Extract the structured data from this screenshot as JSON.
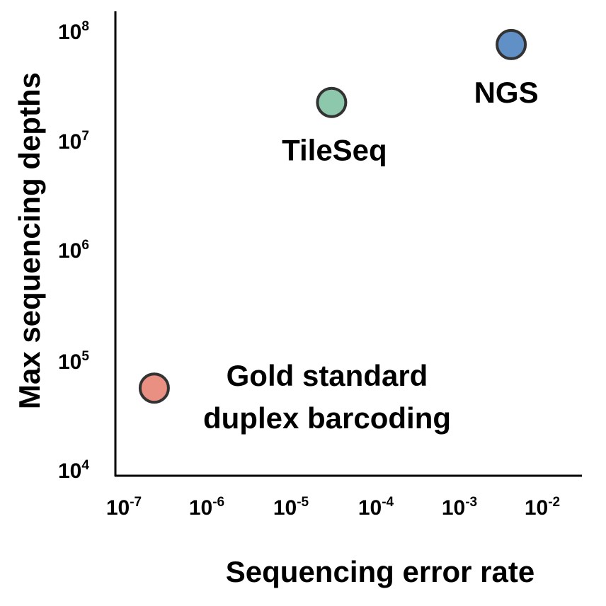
{
  "chart_data": {
    "type": "scatter",
    "xlabel": "Sequencing error rate",
    "ylabel": "Max sequencing depths",
    "x_scale": "log",
    "y_scale": "log",
    "xlim": [
      1e-07,
      0.01
    ],
    "ylim": [
      10000.0,
      100000000.0
    ],
    "grid": false,
    "x_ticks": [
      {
        "base": "10",
        "exp": "-7",
        "value": 1e-07
      },
      {
        "base": "10",
        "exp": "-6",
        "value": 1e-06
      },
      {
        "base": "10",
        "exp": "-5",
        "value": 1e-05
      },
      {
        "base": "10",
        "exp": "-4",
        "value": 0.0001
      },
      {
        "base": "10",
        "exp": "-3",
        "value": 0.001
      },
      {
        "base": "10",
        "exp": "-2",
        "value": 0.01
      }
    ],
    "y_ticks": [
      {
        "base": "10",
        "exp": "4",
        "value": 10000.0
      },
      {
        "base": "10",
        "exp": "5",
        "value": 100000.0
      },
      {
        "base": "10",
        "exp": "6",
        "value": 1000000.0
      },
      {
        "base": "10",
        "exp": "7",
        "value": 10000000.0
      },
      {
        "base": "10",
        "exp": "8",
        "value": 100000000.0
      }
    ],
    "points": [
      {
        "name": "NGS",
        "label_lines": [
          "NGS"
        ],
        "x": 0.0035,
        "y": 85000000.0,
        "color": "#6190c6",
        "label_position": "below"
      },
      {
        "name": "TileSeq",
        "label_lines": [
          "TileSeq"
        ],
        "x": 2.5e-05,
        "y": 25000000.0,
        "color": "#8ec8ac",
        "label_position": "below"
      },
      {
        "name": "Gold standard duplex barcoding",
        "label_lines": [
          "Gold standard",
          "duplex barcoding"
        ],
        "x": 1.9e-07,
        "y": 60000.0,
        "color": "#ea9083",
        "label_position": "right"
      }
    ],
    "marker_edge_color": "#333333"
  }
}
